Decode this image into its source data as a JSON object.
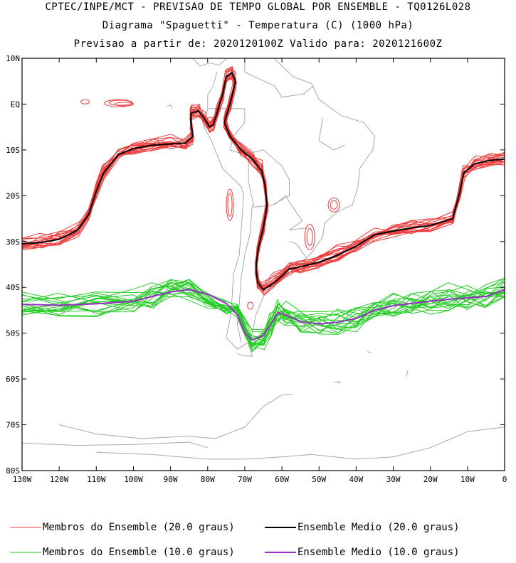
{
  "titles": {
    "line1": "CPTEC/INPE/MCT - PREVISAO DE TEMPO GLOBAL POR ENSEMBLE - TQ0126L028",
    "line2": "Diagrama \"Spaguetti\" - Temperatura (C) (1000 hPa)",
    "line3": "Previsao a partir de: 2020120100Z  Valido para: 2020121600Z"
  },
  "chart_data": {
    "type": "line",
    "title": "Diagrama \"Spaguetti\" - Temperatura (C) (1000 hPa)",
    "xlim": [
      -130,
      0
    ],
    "ylim": [
      -80,
      10
    ],
    "x_ticks": [
      -130,
      -120,
      -110,
      -100,
      -90,
      -80,
      -70,
      -60,
      -50,
      -40,
      -30,
      -20,
      -10,
      0
    ],
    "x_tick_labels": [
      "130W",
      "120W",
      "110W",
      "100W",
      "90W",
      "80W",
      "70W",
      "60W",
      "50W",
      "40W",
      "30W",
      "20W",
      "10W",
      "0"
    ],
    "y_ticks": [
      10,
      0,
      -10,
      -20,
      -30,
      -40,
      -50,
      -60,
      -70,
      -80
    ],
    "y_tick_labels": [
      "10N",
      "EQ",
      "10S",
      "20S",
      "30S",
      "40S",
      "50S",
      "60S",
      "70S",
      "80S"
    ],
    "grid": false,
    "legend_position": "bottom",
    "series": [
      {
        "name": "Ensemble Medio (20.0 graus)",
        "color": "#000000",
        "points": [
          [
            -130,
            -30.5
          ],
          [
            -125,
            -30.2
          ],
          [
            -120,
            -29.5
          ],
          [
            -115,
            -27.5
          ],
          [
            -112,
            -24
          ],
          [
            -110,
            -19
          ],
          [
            -108,
            -15
          ],
          [
            -104,
            -11
          ],
          [
            -100,
            -9.7
          ],
          [
            -95,
            -9
          ],
          [
            -90,
            -8.7
          ],
          [
            -86,
            -8.5
          ],
          [
            -84,
            -7
          ],
          [
            -84.5,
            -4
          ],
          [
            -84.5,
            -2
          ],
          [
            -82.5,
            -1.5
          ],
          [
            -81,
            -3
          ],
          [
            -79.5,
            -5
          ],
          [
            -78.5,
            -4.5
          ],
          [
            -77.5,
            -2
          ],
          [
            -76,
            2
          ],
          [
            -75,
            6
          ],
          [
            -73.5,
            6.8
          ],
          [
            -72.5,
            5
          ],
          [
            -74,
            0
          ],
          [
            -75.5,
            -4
          ],
          [
            -74,
            -7
          ],
          [
            -71,
            -10
          ],
          [
            -68,
            -12
          ],
          [
            -65.5,
            -14.5
          ],
          [
            -64.5,
            -18
          ],
          [
            -64,
            -22
          ],
          [
            -65,
            -27
          ],
          [
            -66.5,
            -32
          ],
          [
            -67,
            -36
          ],
          [
            -66.5,
            -39
          ],
          [
            -65,
            -40.5
          ],
          [
            -62,
            -39
          ],
          [
            -58,
            -36
          ],
          [
            -55,
            -35.5
          ],
          [
            -50,
            -34.5
          ],
          [
            -45,
            -33
          ],
          [
            -40,
            -31
          ],
          [
            -35,
            -28.5
          ],
          [
            -30,
            -27.7
          ],
          [
            -25,
            -27
          ],
          [
            -20,
            -26.5
          ],
          [
            -14,
            -25
          ],
          [
            -12,
            -19
          ],
          [
            -11,
            -15
          ],
          [
            -8,
            -13
          ],
          [
            -4,
            -12.3
          ],
          [
            0,
            -12
          ]
        ]
      },
      {
        "name": "Ensemble Medio (10.0 graus)",
        "color": "#9a2fc8",
        "points": [
          [
            -130,
            -43.7
          ],
          [
            -120,
            -43.9
          ],
          [
            -110,
            -43.6
          ],
          [
            -100,
            -43
          ],
          [
            -95,
            -42
          ],
          [
            -90,
            -41
          ],
          [
            -85,
            -40.5
          ],
          [
            -80,
            -41.5
          ],
          [
            -75,
            -43.5
          ],
          [
            -72,
            -46
          ],
          [
            -70,
            -50
          ],
          [
            -68,
            -51.5
          ],
          [
            -65,
            -50.5
          ],
          [
            -63,
            -48
          ],
          [
            -61,
            -45.5
          ],
          [
            -59,
            -46
          ],
          [
            -55,
            -47.5
          ],
          [
            -50,
            -48
          ],
          [
            -45,
            -47.6
          ],
          [
            -40,
            -46.8
          ],
          [
            -35,
            -45
          ],
          [
            -30,
            -44
          ],
          [
            -25,
            -43.5
          ],
          [
            -20,
            -43
          ],
          [
            -15,
            -42.6
          ],
          [
            -10,
            -42.3
          ],
          [
            -5,
            -42
          ],
          [
            0,
            -40.5
          ]
        ]
      },
      {
        "name": "Membros do Ensemble (20.0 graus)",
        "color": "#ee3b3b",
        "style": "ensemble members scattered around the 20.0 graus mean"
      },
      {
        "name": "Membros do Ensemble (10.0 graus)",
        "color": "#22cc22",
        "style": "ensemble members scattered around the 10.0 graus mean"
      }
    ]
  },
  "legend": [
    {
      "label": "Membros do Ensemble (20.0 graus)",
      "color": "#ee3b3b"
    },
    {
      "label": "Ensemble Medio (20.0 graus)",
      "color": "#000000"
    },
    {
      "label": "Membros do Ensemble (10.0 graus)",
      "color": "#22cc22"
    },
    {
      "label": "Ensemble Medio (10.0 graus)",
      "color": "#9a2fc8"
    }
  ],
  "colors": {
    "coastline": "#a8a8a8",
    "axis": "#000000"
  }
}
